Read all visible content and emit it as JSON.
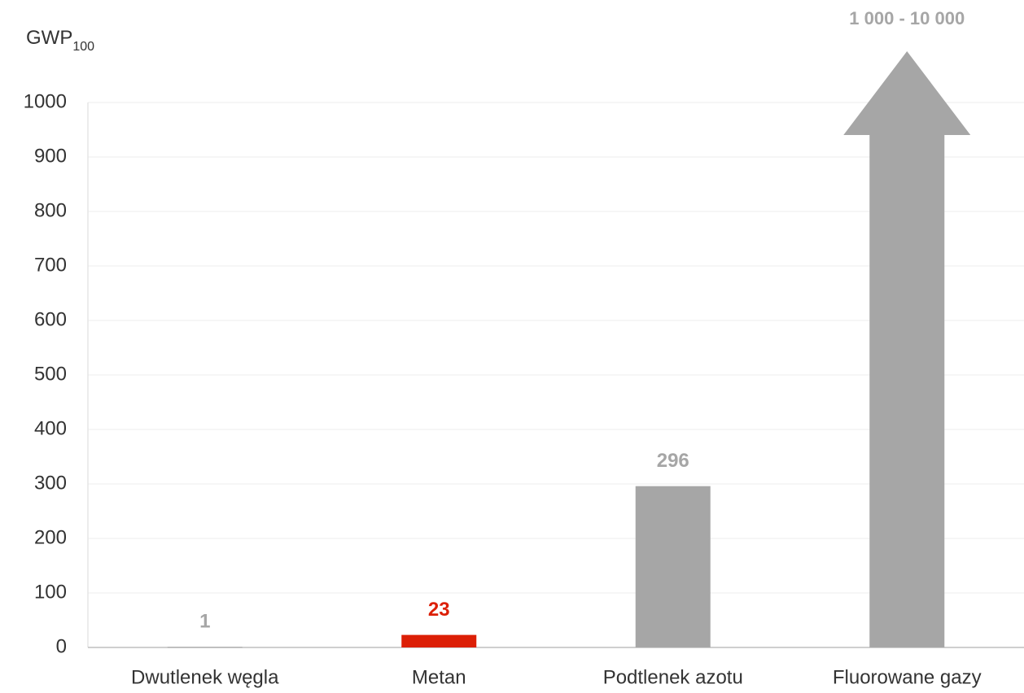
{
  "chart_data": {
    "type": "bar",
    "y_label": {
      "text": "GWP",
      "subscript": "100"
    },
    "categories": [
      "Dwutlenek węgla",
      "Metan",
      "Podtlenek azotu",
      "Fluorowane gazy"
    ],
    "values": [
      1,
      23,
      296,
      null
    ],
    "colors": [
      "#a6a6a6",
      "#dc1f06",
      "#a6a6a6",
      "#a6a6a6"
    ],
    "annotation": "1 000 - 10 000",
    "ylim": [
      0,
      1000
    ],
    "yticks": [
      0,
      100,
      200,
      300,
      400,
      500,
      600,
      700,
      800,
      900,
      1000
    ],
    "grid": true
  }
}
